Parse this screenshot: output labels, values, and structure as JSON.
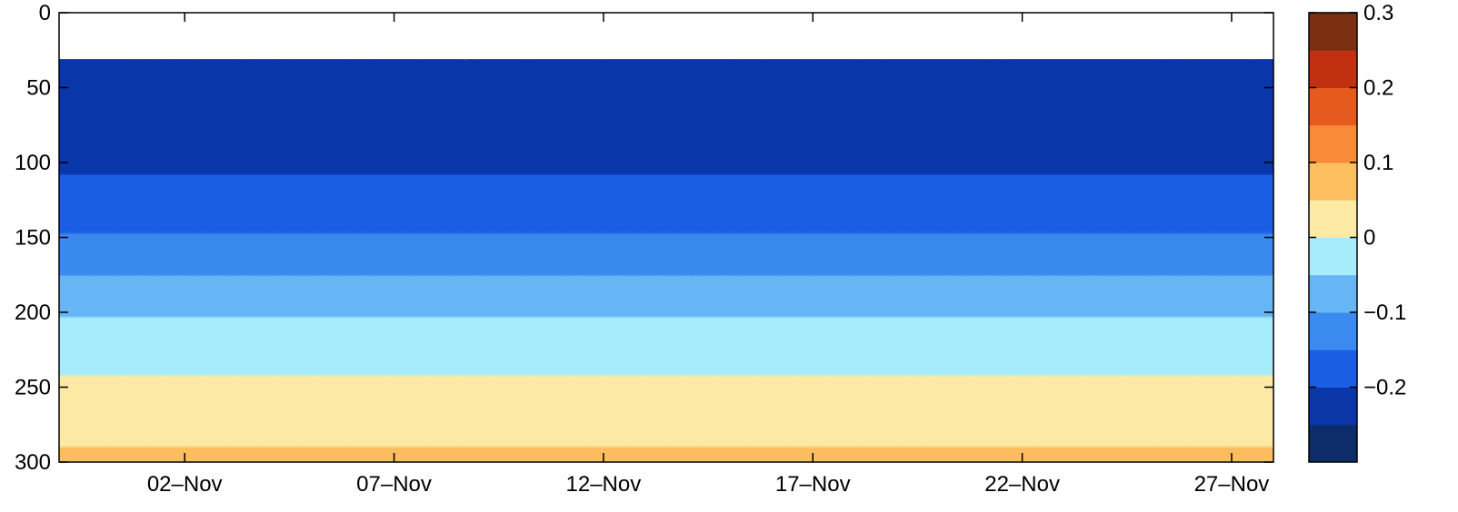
{
  "chart_data": {
    "type": "heatmap",
    "subtype": "filled-contour",
    "x_axis": {
      "kind": "date",
      "tick_labels": [
        "02–Nov",
        "07–Nov",
        "12–Nov",
        "17–Nov",
        "22–Nov",
        "27–Nov"
      ],
      "tick_values": [
        "2000-11-02",
        "2000-11-07",
        "2000-11-12",
        "2000-11-17",
        "2000-11-22",
        "2000-11-27"
      ],
      "range": [
        "2000-10-30",
        "2000-11-28"
      ]
    },
    "y_axis": {
      "reversed": true,
      "range": [
        0,
        300
      ],
      "tick_values": [
        0,
        50,
        100,
        150,
        200,
        250,
        300
      ],
      "tick_labels": [
        "0",
        "50",
        "100",
        "150",
        "200",
        "250",
        "300"
      ]
    },
    "data_top": 31,
    "colorbar": {
      "range": [
        -0.3,
        0.3
      ],
      "levels": [
        -0.3,
        -0.25,
        -0.2,
        -0.15,
        -0.1,
        -0.05,
        0,
        0.05,
        0.1,
        0.15,
        0.2,
        0.25,
        0.3
      ],
      "colors": [
        "#0d2c6a",
        "#0a36a8",
        "#1a5ee4",
        "#3b8af0",
        "#66b5f5",
        "#a6ecfa",
        "#fdeaa5",
        "#fdbe60",
        "#f88b38",
        "#e55a1e",
        "#c13010",
        "#7a3010"
      ],
      "tick_values": [
        -0.2,
        -0.1,
        0,
        0.1,
        0.2,
        0.3
      ],
      "tick_labels": [
        "−0.2",
        "−0.1",
        "0",
        "0.1",
        "0.2",
        "0.3"
      ]
    },
    "grid": false,
    "xlabel": "",
    "ylabel": "",
    "title": ""
  }
}
